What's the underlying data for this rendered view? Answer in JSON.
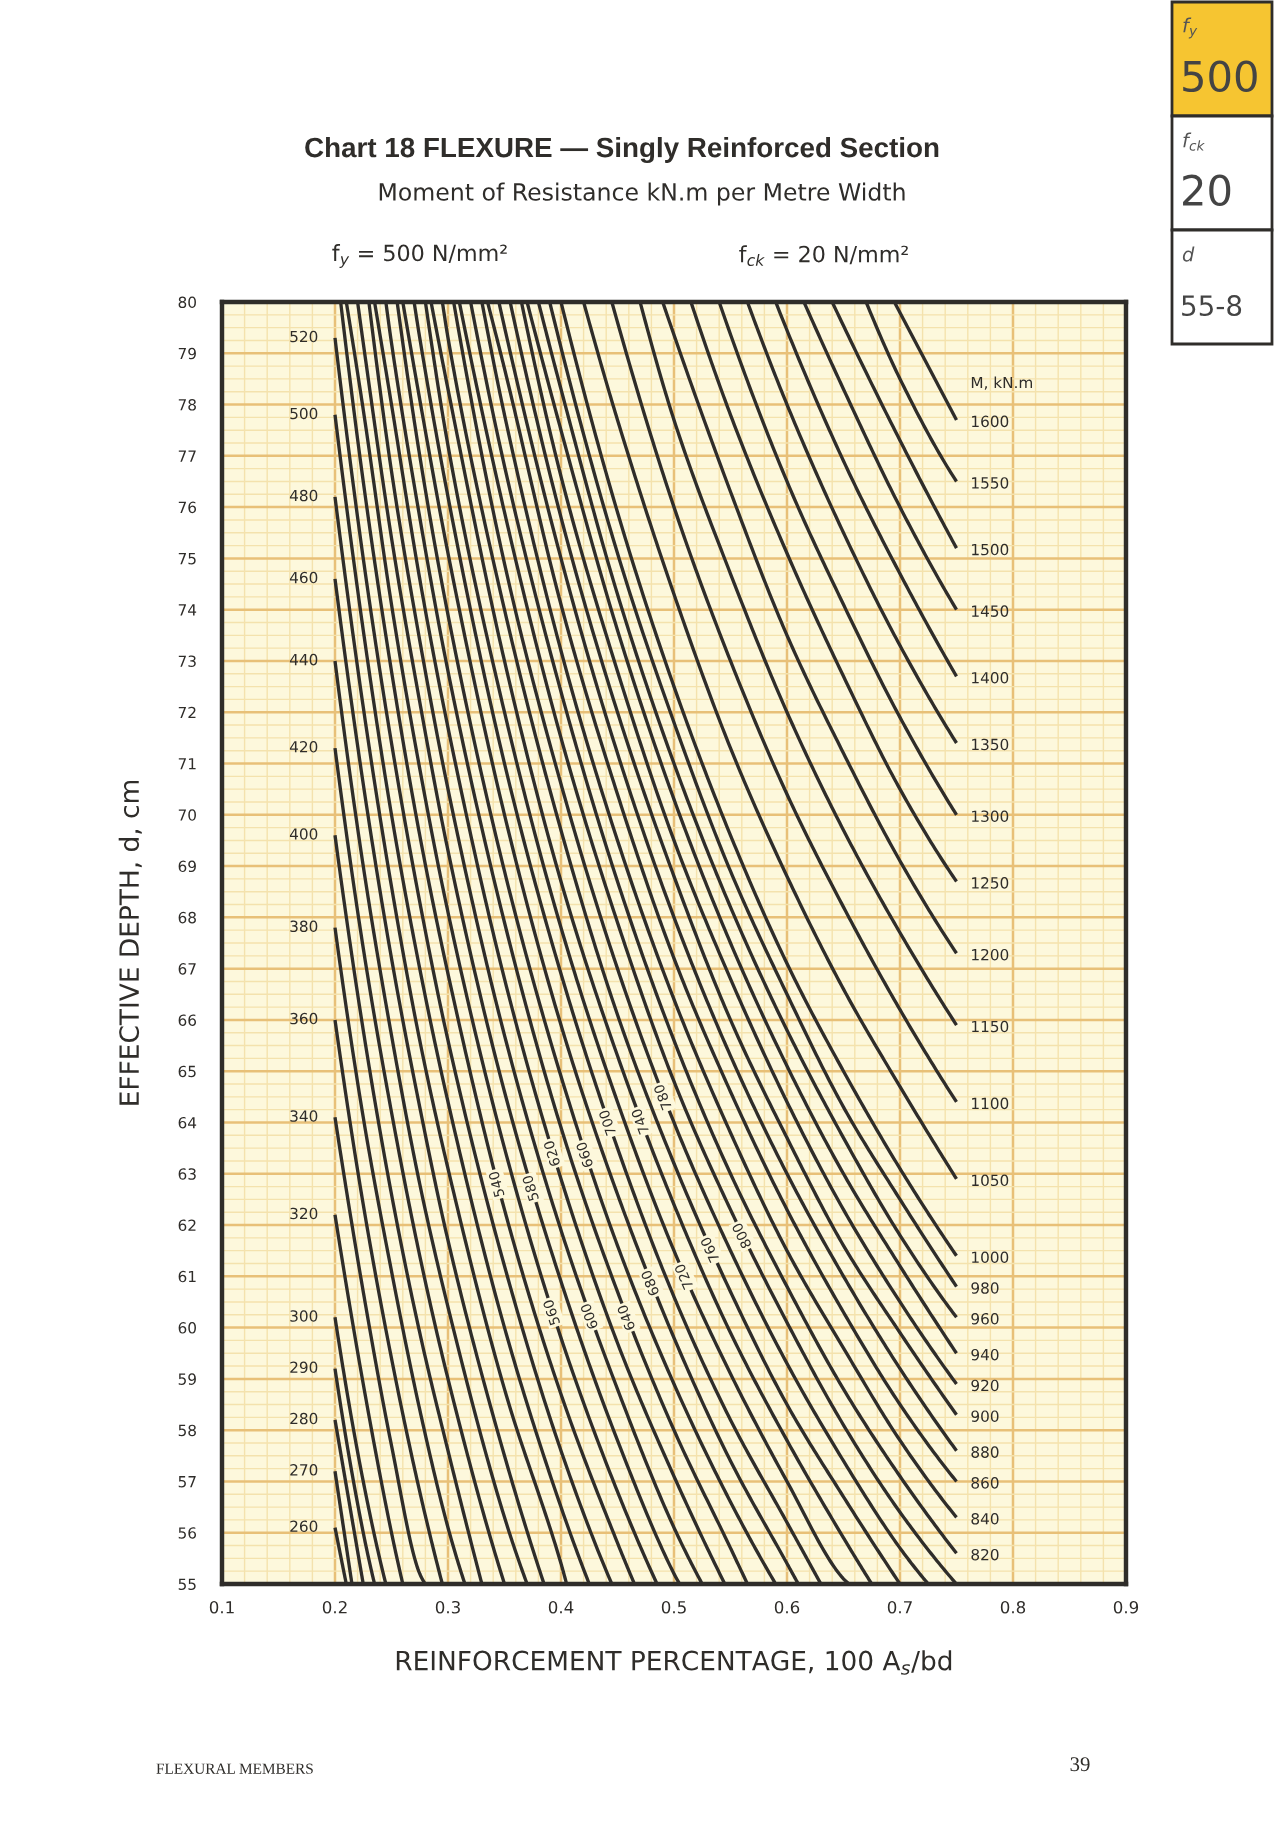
{
  "chart_data": {
    "type": "line",
    "title": "Chart 18 FLEXURE — Singly Reinforced Section",
    "subtitle": "Moment of Resistance kN.m per Metre Width",
    "xlabel": "REINFORCEMENT PERCENTAGE, 100 A$_{s}$/bd",
    "ylabel": "EFFECTIVE DEPTH, d, cm",
    "annotations": [
      "f$_{y}$ = 500 N/mm²",
      "f$_{ck}$ = 20 N/mm²",
      "M, kN.m",
      "FLEXURAL MEMBERS",
      "39",
      "f$_{y}$",
      "500",
      "f$_{ck}$",
      "20",
      "d",
      "55-8"
    ],
    "xlim": [
      0.1,
      0.9
    ],
    "ylim": [
      55,
      80
    ],
    "xticks": [
      0.1,
      {
        "value": 0.12,
        "label": null
      },
      {
        "value": 0.14,
        "label": null
      },
      {
        "value": 0.16,
        "label": null
      },
      {
        "value": 0.18,
        "label": null
      },
      0.2,
      {
        "value": 0.22,
        "label": null
      },
      {
        "value": 0.24,
        "label": null
      },
      {
        "value": 0.26,
        "label": null
      },
      {
        "value": 0.28,
        "label": null
      },
      0.3,
      {
        "value": 0.32,
        "label": null
      },
      {
        "value": 0.34,
        "label": null
      },
      {
        "value": 0.36,
        "label": null
      },
      {
        "value": 0.38,
        "label": null
      },
      0.4,
      {
        "value": 0.42,
        "label": null
      },
      {
        "value": 0.44,
        "label": null
      },
      {
        "value": 0.46,
        "label": null
      },
      {
        "value": 0.48,
        "label": null
      },
      0.5,
      {
        "value": 0.52,
        "label": null
      },
      {
        "value": 0.54,
        "label": null
      },
      {
        "value": 0.56,
        "label": null
      },
      {
        "value": 0.58,
        "label": null
      },
      0.6,
      {
        "value": 0.62,
        "label": null
      },
      {
        "value": 0.64,
        "label": null
      },
      {
        "value": 0.66,
        "label": null
      },
      {
        "value": 0.68,
        "label": null
      },
      0.7,
      {
        "value": 0.72,
        "label": null
      },
      {
        "value": 0.74,
        "label": null
      },
      {
        "value": 0.76,
        "label": null
      },
      {
        "value": 0.78,
        "label": null
      },
      0.8,
      {
        "value": 0.82,
        "label": null
      },
      {
        "value": 0.84,
        "label": null
      },
      {
        "value": 0.86,
        "label": null
      },
      {
        "value": 0.88,
        "label": null
      },
      0.9
    ],
    "yticks": [
      55,
      {
        "value": 55.25,
        "label": null
      },
      {
        "value": 55.5,
        "label": null
      },
      {
        "value": 55.75,
        "label": null
      },
      56,
      {
        "value": 56.25,
        "label": null
      },
      {
        "value": 56.5,
        "label": null
      },
      {
        "value": 56.75,
        "label": null
      },
      57,
      {
        "value": 57.25,
        "label": null
      },
      {
        "value": 57.5,
        "label": null
      },
      {
        "value": 57.75,
        "label": null
      },
      58,
      {
        "value": 58.25,
        "label": null
      },
      {
        "value": 58.5,
        "label": null
      },
      {
        "value": 58.75,
        "label": null
      },
      59,
      {
        "value": 59.25,
        "label": null
      },
      {
        "value": 59.5,
        "label": null
      },
      {
        "value": 59.75,
        "label": null
      },
      60,
      {
        "value": 60.25,
        "label": null
      },
      {
        "value": 60.5,
        "label": null
      },
      {
        "value": 60.75,
        "label": null
      },
      61,
      {
        "value": 61.25,
        "label": null
      },
      {
        "value": 61.5,
        "label": null
      },
      {
        "value": 61.75,
        "label": null
      },
      62,
      {
        "value": 62.25,
        "label": null
      },
      {
        "value": 62.5,
        "label": null
      },
      {
        "value": 62.75,
        "label": null
      },
      63,
      {
        "value": 63.25,
        "label": null
      },
      {
        "value": 63.5,
        "label": null
      },
      {
        "value": 63.75,
        "label": null
      },
      64,
      {
        "value": 64.25,
        "label": null
      },
      {
        "value": 64.5,
        "label": null
      },
      {
        "value": 64.75,
        "label": null
      },
      65,
      {
        "value": 65.25,
        "label": null
      },
      {
        "value": 65.5,
        "label": null
      },
      {
        "value": 65.75,
        "label": null
      },
      66,
      {
        "value": 66.25,
        "label": null
      },
      {
        "value": 66.5,
        "label": null
      },
      {
        "value": 66.75,
        "label": null
      },
      67,
      {
        "value": 67.25,
        "label": null
      },
      {
        "value": 67.5,
        "label": null
      },
      {
        "value": 67.75,
        "label": null
      },
      68,
      {
        "value": 68.25,
        "label": null
      },
      {
        "value": 68.5,
        "label": null
      },
      {
        "value": 68.75,
        "label": null
      },
      69,
      {
        "value": 69.25,
        "label": null
      },
      {
        "value": 69.5,
        "label": null
      },
      {
        "value": 69.75,
        "label": null
      },
      70,
      {
        "value": 70.25,
        "label": null
      },
      {
        "value": 70.5,
        "label": null
      },
      {
        "value": 70.75,
        "label": null
      },
      71,
      {
        "value": 71.25,
        "label": null
      },
      {
        "value": 71.5,
        "label": null
      },
      {
        "value": 71.75,
        "label": null
      },
      72,
      {
        "value": 72.25,
        "label": null
      },
      {
        "value": 72.5,
        "label": null
      },
      {
        "value": 72.75,
        "label": null
      },
      73,
      {
        "value": 73.25,
        "label": null
      },
      {
        "value": 73.5,
        "label": null
      },
      {
        "value": 73.75,
        "label": null
      },
      74,
      {
        "value": 74.25,
        "label": null
      },
      {
        "value": 74.5,
        "label": null
      },
      {
        "value": 74.75,
        "label": null
      },
      75,
      {
        "value": 75.25,
        "label": null
      },
      {
        "value": 75.5,
        "label": null
      },
      {
        "value": 75.75,
        "label": null
      },
      76,
      {
        "value": 76.25,
        "label": null
      },
      {
        "value": 76.5,
        "label": null
      },
      {
        "value": 76.75,
        "label": null
      },
      77,
      {
        "value": 77.25,
        "label": null
      },
      {
        "value": 77.5,
        "label": null
      },
      {
        "value": 77.75,
        "label": null
      },
      78,
      {
        "value": 78.25,
        "label": null
      },
      {
        "value": 78.5,
        "label": null
      },
      {
        "value": 78.75,
        "label": null
      },
      79,
      {
        "value": 79.25,
        "label": null
      },
      {
        "value": 79.5,
        "label": null
      },
      {
        "value": 79.75,
        "label": null
      },
      80
    ],
    "grid": true,
    "color": "#2f2d2a",
    "series": [
      {
        "name": "260",
        "x": [
          0.2,
          0.21
        ],
        "values": [
          56.1,
          55
        ]
      },
      {
        "name": "270",
        "x": [
          0.2,
          0.215
        ],
        "values": [
          57.2,
          55
        ]
      },
      {
        "name": "280",
        "x": [
          0.2,
          0.225
        ],
        "values": [
          58.2,
          55
        ]
      },
      {
        "name": "290",
        "x": [
          0.2,
          0.225,
          0.235
        ],
        "values": [
          59.2,
          56.0,
          55
        ]
      },
      {
        "name": "300",
        "x": [
          0.2,
          0.225,
          0.245
        ],
        "values": [
          60.2,
          57.0,
          55
        ]
      },
      {
        "name": "320",
        "x": [
          0.2,
          0.225,
          0.25,
          0.26
        ],
        "values": [
          62.2,
          58.9,
          56.0,
          55
        ]
      },
      {
        "name": "340",
        "x": [
          0.2,
          0.225,
          0.25,
          0.275,
          0.28
        ],
        "values": [
          64.1,
          60.7,
          57.7,
          55.2,
          55
        ]
      },
      {
        "name": "360",
        "x": [
          0.2,
          0.225,
          0.25,
          0.275,
          0.295
        ],
        "values": [
          66.0,
          62.4,
          59.4,
          56.8,
          55
        ]
      },
      {
        "name": "380",
        "x": [
          0.2,
          0.225,
          0.25,
          0.275,
          0.3,
          0.315
        ],
        "values": [
          67.8,
          64.1,
          61.1,
          58.4,
          56.1,
          55
        ]
      },
      {
        "name": "400",
        "x": [
          0.2,
          0.225,
          0.25,
          0.275,
          0.3,
          0.33
        ],
        "values": [
          69.6,
          65.8,
          62.6,
          59.9,
          57.6,
          55
        ]
      },
      {
        "name": "420",
        "x": [
          0.2,
          0.225,
          0.25,
          0.275,
          0.3,
          0.35
        ],
        "values": [
          71.3,
          67.4,
          64.2,
          61.4,
          59.0,
          55
        ]
      },
      {
        "name": "440",
        "x": [
          0.2,
          0.225,
          0.25,
          0.275,
          0.3,
          0.35,
          0.37
        ],
        "values": [
          73.0,
          69.0,
          65.7,
          62.8,
          60.4,
          56.3,
          55
        ]
      },
      {
        "name": "460",
        "x": [
          0.2,
          0.225,
          0.25,
          0.275,
          0.3,
          0.35,
          0.385
        ],
        "values": [
          74.6,
          70.6,
          67.2,
          64.3,
          61.7,
          57.5,
          55
        ]
      },
      {
        "name": "480",
        "x": [
          0.2,
          0.225,
          0.25,
          0.275,
          0.3,
          0.35,
          0.4,
          0.405
        ],
        "values": [
          76.2,
          72.1,
          68.6,
          65.6,
          63.1,
          58.8,
          55.4,
          55
        ]
      },
      {
        "name": "500",
        "x": [
          0.2,
          0.225,
          0.25,
          0.275,
          0.3,
          0.35,
          0.4,
          0.425
        ],
        "values": [
          77.8,
          73.6,
          70.0,
          67.0,
          64.4,
          60.0,
          56.5,
          55
        ]
      },
      {
        "name": "520",
        "x": [
          0.2,
          0.225,
          0.25,
          0.275,
          0.3,
          0.35,
          0.4,
          0.445
        ],
        "values": [
          79.3,
          75.0,
          71.4,
          68.3,
          65.6,
          61.2,
          57.6,
          55
        ]
      },
      {
        "name": "540",
        "x": [
          0.205,
          0.225,
          0.25,
          0.275,
          0.3,
          0.35,
          0.4,
          0.45,
          0.465
        ],
        "values": [
          80,
          76.5,
          72.8,
          69.6,
          66.9,
          62.3,
          58.7,
          55.8,
          55
        ]
      },
      {
        "name": "560",
        "x": [
          0.21,
          0.225,
          0.25,
          0.275,
          0.3,
          0.35,
          0.4,
          0.45,
          0.485
        ],
        "values": [
          80,
          77.9,
          74.1,
          70.9,
          68.1,
          63.5,
          59.8,
          56.8,
          55
        ]
      },
      {
        "name": "580",
        "x": [
          0.22,
          0.225,
          0.25,
          0.275,
          0.3,
          0.35,
          0.4,
          0.45,
          0.5,
          0.505
        ],
        "values": [
          80,
          79.2,
          75.4,
          72.2,
          69.3,
          64.6,
          60.9,
          57.8,
          55.2,
          55
        ]
      },
      {
        "name": "600",
        "x": [
          0.23,
          0.25,
          0.275,
          0.3,
          0.35,
          0.4,
          0.45,
          0.5,
          0.525
        ],
        "values": [
          80,
          76.7,
          73.4,
          70.5,
          65.7,
          61.9,
          58.8,
          56.1,
          55
        ]
      },
      {
        "name": "620",
        "x": [
          0.235,
          0.25,
          0.275,
          0.3,
          0.35,
          0.4,
          0.45,
          0.5,
          0.545
        ],
        "values": [
          80,
          78.0,
          74.6,
          71.7,
          66.8,
          62.9,
          59.7,
          57.1,
          55
        ]
      },
      {
        "name": "640",
        "x": [
          0.245,
          0.25,
          0.275,
          0.3,
          0.35,
          0.4,
          0.45,
          0.5,
          0.55,
          0.565
        ],
        "values": [
          80,
          79.2,
          75.8,
          72.8,
          67.9,
          63.9,
          60.7,
          58.0,
          55.7,
          55
        ]
      },
      {
        "name": "660",
        "x": [
          0.255,
          0.275,
          0.3,
          0.35,
          0.4,
          0.45,
          0.5,
          0.55,
          0.59
        ],
        "values": [
          80,
          77.0,
          73.9,
          68.9,
          64.9,
          61.6,
          58.9,
          56.6,
          55
        ]
      },
      {
        "name": "680",
        "x": [
          0.26,
          0.275,
          0.3,
          0.35,
          0.4,
          0.45,
          0.5,
          0.55,
          0.6,
          0.61
        ],
        "values": [
          80,
          78.1,
          75.1,
          70.0,
          65.9,
          62.6,
          59.8,
          57.4,
          55.4,
          55
        ]
      },
      {
        "name": "700",
        "x": [
          0.27,
          0.275,
          0.3,
          0.35,
          0.4,
          0.45,
          0.5,
          0.55,
          0.6,
          0.63
        ],
        "values": [
          80,
          79.3,
          76.2,
          71.0,
          66.9,
          63.5,
          60.6,
          58.2,
          56.2,
          55
        ]
      },
      {
        "name": "720",
        "x": [
          0.28,
          0.3,
          0.35,
          0.4,
          0.45,
          0.5,
          0.55,
          0.6,
          0.65,
          0.655
        ],
        "values": [
          80,
          77.2,
          72.0,
          67.8,
          64.4,
          61.5,
          59.1,
          57.0,
          55.1,
          55
        ]
      },
      {
        "name": "740",
        "x": [
          0.285,
          0.3,
          0.35,
          0.4,
          0.45,
          0.5,
          0.55,
          0.6,
          0.65,
          0.675
        ],
        "values": [
          80,
          78.3,
          73.0,
          68.7,
          65.3,
          62.4,
          59.9,
          57.8,
          55.9,
          55
        ]
      },
      {
        "name": "760",
        "x": [
          0.295,
          0.3,
          0.35,
          0.4,
          0.45,
          0.5,
          0.55,
          0.6,
          0.65,
          0.7
        ],
        "values": [
          80,
          79.3,
          74.0,
          69.7,
          66.1,
          63.2,
          60.7,
          58.5,
          56.7,
          55
        ]
      },
      {
        "name": "780",
        "x": [
          0.305,
          0.35,
          0.4,
          0.45,
          0.5,
          0.55,
          0.6,
          0.65,
          0.7,
          0.725
        ],
        "values": [
          80,
          74.9,
          70.6,
          67.0,
          64.0,
          61.5,
          59.3,
          57.4,
          55.7,
          55
        ]
      },
      {
        "name": "800",
        "x": [
          0.31,
          0.35,
          0.4,
          0.45,
          0.5,
          0.55,
          0.6,
          0.65,
          0.7,
          0.75
        ],
        "values": [
          80,
          75.9,
          71.5,
          67.9,
          64.8,
          62.3,
          60.1,
          58.1,
          56.4,
          55
        ]
      },
      {
        "name": "820",
        "x": [
          0.32,
          0.35,
          0.4,
          0.45,
          0.5,
          0.55,
          0.6,
          0.65,
          0.7,
          0.75
        ],
        "values": [
          80,
          76.8,
          72.4,
          68.7,
          65.6,
          63.0,
          60.8,
          58.8,
          57.1,
          55.6
        ]
      },
      {
        "name": "840",
        "x": [
          0.33,
          0.35,
          0.4,
          0.45,
          0.5,
          0.55,
          0.6,
          0.65,
          0.7,
          0.75
        ],
        "values": [
          80,
          77.8,
          73.2,
          69.5,
          66.4,
          63.8,
          61.5,
          59.6,
          57.8,
          56.3
        ]
      },
      {
        "name": "860",
        "x": [
          0.335,
          0.35,
          0.4,
          0.45,
          0.5,
          0.55,
          0.6,
          0.65,
          0.7,
          0.75
        ],
        "values": [
          80,
          78.7,
          74.1,
          70.4,
          67.2,
          64.6,
          62.3,
          60.3,
          58.5,
          57.0
        ]
      },
      {
        "name": "880",
        "x": [
          0.345,
          0.4,
          0.45,
          0.5,
          0.55,
          0.6,
          0.65,
          0.7,
          0.75
        ],
        "values": [
          80,
          75.0,
          71.2,
          68.0,
          65.3,
          63.0,
          61.0,
          59.2,
          57.6
        ]
      },
      {
        "name": "900",
        "x": [
          0.355,
          0.4,
          0.45,
          0.5,
          0.55,
          0.6,
          0.65,
          0.7,
          0.75
        ],
        "values": [
          80,
          75.8,
          72.0,
          68.8,
          66.0,
          63.7,
          61.6,
          59.9,
          58.3
        ]
      },
      {
        "name": "920",
        "x": [
          0.365,
          0.4,
          0.45,
          0.5,
          0.55,
          0.6,
          0.65,
          0.7,
          0.75
        ],
        "values": [
          80,
          76.6,
          72.8,
          69.5,
          66.8,
          64.4,
          62.3,
          60.5,
          58.9
        ]
      },
      {
        "name": "940",
        "x": [
          0.37,
          0.4,
          0.45,
          0.5,
          0.55,
          0.6,
          0.65,
          0.7,
          0.75
        ],
        "values": [
          80,
          77.5,
          73.6,
          70.3,
          67.5,
          65.1,
          63.0,
          61.2,
          59.5
        ]
      },
      {
        "name": "960",
        "x": [
          0.38,
          0.4,
          0.45,
          0.5,
          0.55,
          0.6,
          0.65,
          0.7,
          0.75
        ],
        "values": [
          80,
          78.3,
          74.3,
          71.0,
          68.2,
          65.8,
          63.7,
          61.8,
          60.2
        ]
      },
      {
        "name": "980",
        "x": [
          0.39,
          0.45,
          0.5,
          0.55,
          0.6,
          0.65,
          0.7,
          0.75
        ],
        "values": [
          80,
          75.1,
          71.8,
          68.9,
          66.5,
          64.3,
          62.5,
          60.8
        ]
      },
      {
        "name": "1000",
        "x": [
          0.4,
          0.45,
          0.5,
          0.55,
          0.6,
          0.65,
          0.7,
          0.75
        ],
        "values": [
          80,
          75.9,
          72.5,
          69.6,
          67.1,
          65.0,
          63.1,
          61.4
        ]
      },
      {
        "name": "1050",
        "x": [
          0.42,
          0.45,
          0.5,
          0.55,
          0.6,
          0.65,
          0.7,
          0.75
        ],
        "values": [
          80,
          77.7,
          74.3,
          71.3,
          68.8,
          66.6,
          64.7,
          62.9
        ]
      },
      {
        "name": "1100",
        "x": [
          0.445,
          0.5,
          0.55,
          0.6,
          0.65,
          0.7,
          0.75
        ],
        "values": [
          80,
          76.0,
          73.0,
          70.4,
          68.2,
          66.2,
          64.4
        ]
      },
      {
        "name": "1150",
        "x": [
          0.47,
          0.5,
          0.55,
          0.6,
          0.65,
          0.7,
          0.75
        ],
        "values": [
          80,
          77.7,
          74.7,
          72.0,
          69.7,
          67.7,
          65.9
        ]
      },
      {
        "name": "1200",
        "x": [
          0.49,
          0.55,
          0.6,
          0.65,
          0.7,
          0.75
        ],
        "values": [
          80,
          76.3,
          73.5,
          71.2,
          69.1,
          67.3
        ]
      },
      {
        "name": "1250",
        "x": [
          0.515,
          0.55,
          0.6,
          0.65,
          0.7,
          0.75
        ],
        "values": [
          80,
          77.8,
          75.1,
          72.7,
          70.5,
          68.7
        ]
      },
      {
        "name": "1300",
        "x": [
          0.54,
          0.6,
          0.65,
          0.7,
          0.75
        ],
        "values": [
          80,
          76.5,
          74.1,
          71.9,
          70.0
        ]
      },
      {
        "name": "1350",
        "x": [
          0.565,
          0.6,
          0.65,
          0.7,
          0.75
        ],
        "values": [
          80,
          78.0,
          75.5,
          73.3,
          71.4
        ]
      },
      {
        "name": "1400",
        "x": [
          0.59,
          0.65,
          0.7,
          0.75
        ],
        "values": [
          80,
          76.9,
          74.7,
          72.7
        ]
      },
      {
        "name": "1450",
        "x": [
          0.615,
          0.65,
          0.7,
          0.75
        ],
        "values": [
          80,
          78.3,
          76.0,
          74.0
        ]
      },
      {
        "name": "1500",
        "x": [
          0.64,
          0.7,
          0.75
        ],
        "values": [
          80,
          77.3,
          75.2
        ]
      },
      {
        "name": "1550",
        "x": [
          0.67,
          0.7,
          0.75
        ],
        "values": [
          80,
          78.5,
          76.5
        ]
      },
      {
        "name": "1600",
        "x": [
          0.695,
          0.75
        ],
        "values": [
          80,
          77.7
        ]
      }
    ]
  }
}
